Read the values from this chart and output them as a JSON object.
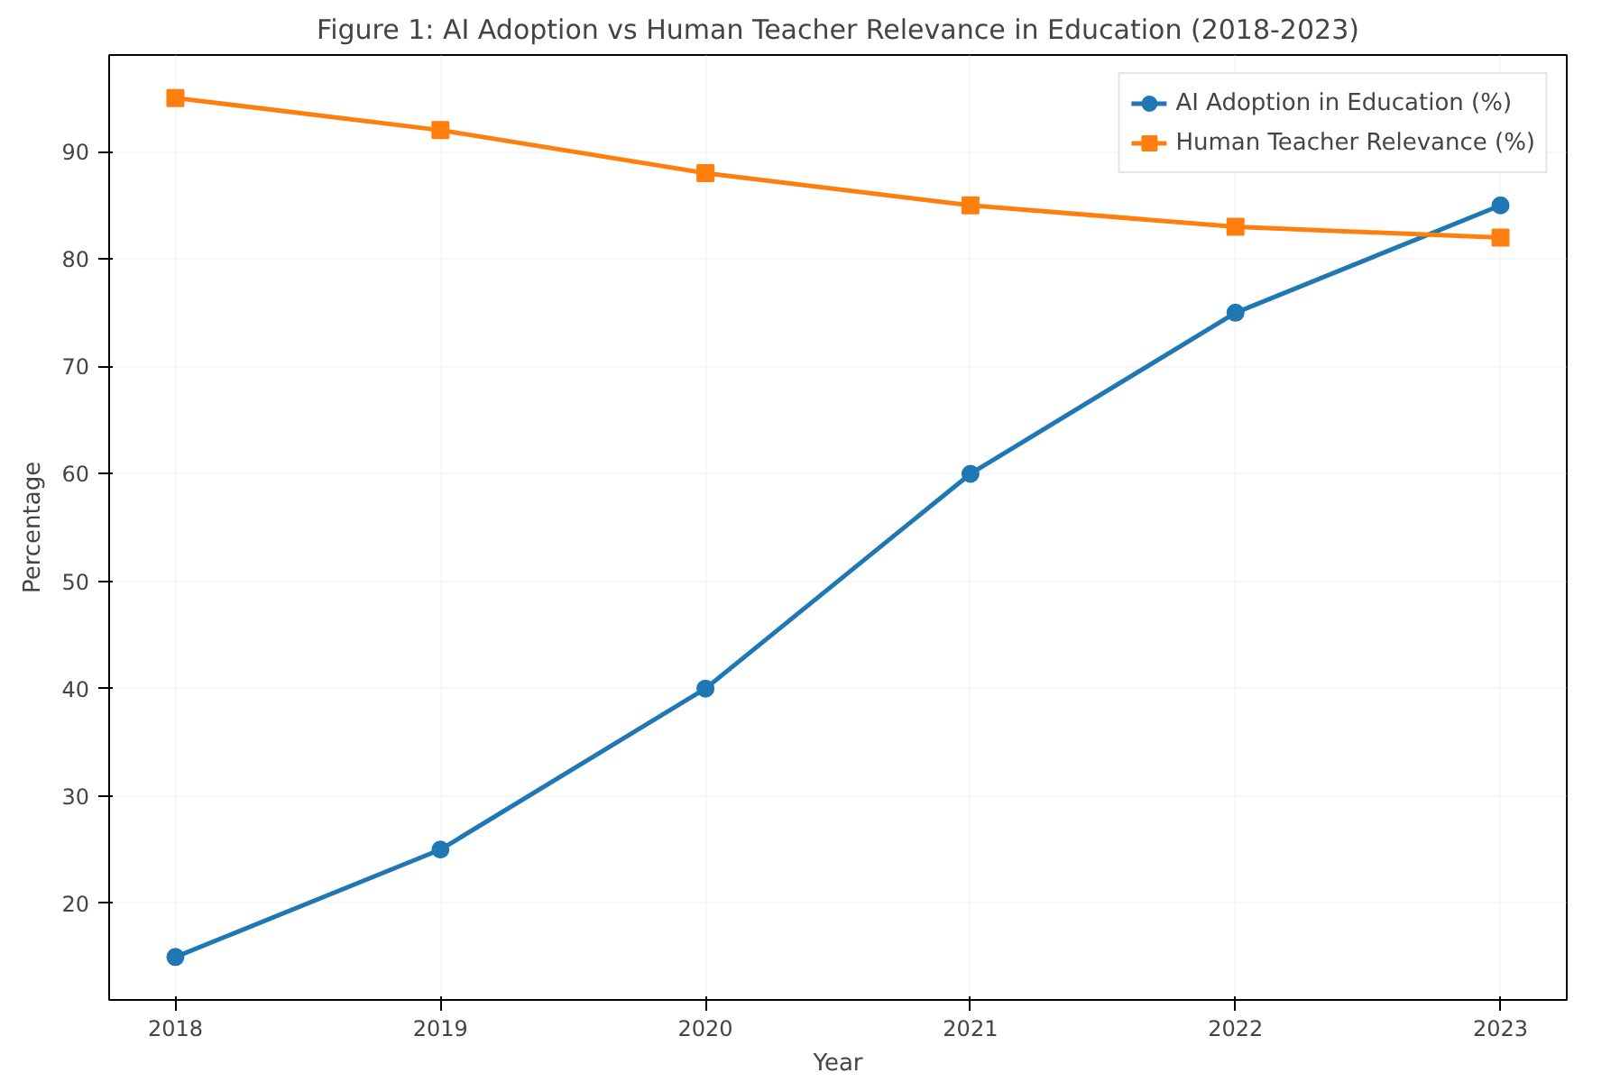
{
  "chart_data": {
    "type": "line",
    "title": "Figure 1: AI Adoption vs Human Teacher Relevance in Education (2018-2023)",
    "xlabel": "Year",
    "ylabel": "Percentage",
    "x": [
      2018,
      2019,
      2020,
      2021,
      2022,
      2023
    ],
    "series": [
      {
        "name": "AI Adoption in Education (%)",
        "color": "#1f77b4",
        "values": [
          15,
          25,
          40,
          60,
          75,
          85
        ],
        "marker": "circle"
      },
      {
        "name": "Human Teacher Relevance (%)",
        "color": "#ff7f0e",
        "values": [
          95,
          92,
          88,
          85,
          83,
          82
        ],
        "marker": "square"
      }
    ],
    "xlim": [
      2017.75,
      2023.25
    ],
    "xticks": [
      2018,
      2019,
      2020,
      2021,
      2022,
      2023
    ],
    "ylim": [
      11,
      99
    ],
    "yticks": [
      20,
      30,
      40,
      50,
      60,
      70,
      80,
      90
    ],
    "grid": true,
    "legend": "top right",
    "line_style": "solid"
  }
}
